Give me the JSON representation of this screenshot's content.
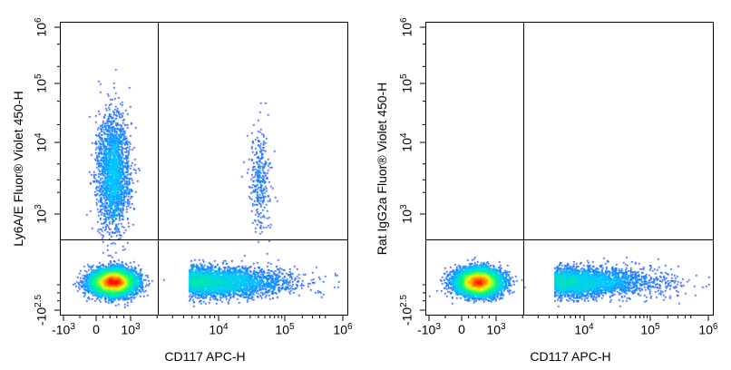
{
  "chart_data": [
    {
      "type": "scatter",
      "subtype": "flow-cytometry-density-dot-plot",
      "x_scale": "biexponential",
      "y_scale": "biexponential",
      "xlabel": "CD117 APC-H",
      "ylabel": "Ly6A/E  Fluor® Violet 450-H",
      "x_ticks": [
        {
          "label": "-10",
          "sup": "3",
          "value": -1000
        },
        {
          "label": "0",
          "sup": "",
          "value": 0
        },
        {
          "label": "10",
          "sup": "3",
          "value": 1000
        },
        {
          "label": "10",
          "sup": "4",
          "value": 10000
        },
        {
          "label": "10",
          "sup": "5",
          "value": 100000
        },
        {
          "label": "10",
          "sup": "6",
          "value": 1000000
        }
      ],
      "y_ticks": [
        {
          "label": "-10",
          "sup": "2.5",
          "value": -316
        },
        {
          "label": "10",
          "sup": "3",
          "value": 1000
        },
        {
          "label": "10",
          "sup": "4",
          "value": 10000
        },
        {
          "label": "10",
          "sup": "5",
          "value": 100000
        },
        {
          "label": "10",
          "sup": "6",
          "value": 1000000
        }
      ],
      "gates": {
        "x": 2000,
        "y": 650
      },
      "populations": [
        {
          "name": "main",
          "x_center": 450,
          "y_center": 60,
          "weight": 0.72
        },
        {
          "name": "ly6ae-positive",
          "x_center": 450,
          "y_center": 4000,
          "weight": 0.16
        },
        {
          "name": "cd117-spread",
          "x_center": 8000,
          "y_center": 60,
          "weight": 0.1
        },
        {
          "name": "double-positive",
          "x_center": 40000,
          "y_center": 3000,
          "weight": 0.02
        }
      ]
    },
    {
      "type": "scatter",
      "subtype": "flow-cytometry-density-dot-plot",
      "x_scale": "biexponential",
      "y_scale": "biexponential",
      "xlabel": "CD117 APC-H",
      "ylabel": "Rat IgG2a  Fluor® Violet 450-H",
      "x_ticks": [
        {
          "label": "-10",
          "sup": "3",
          "value": -1000
        },
        {
          "label": "0",
          "sup": "",
          "value": 0
        },
        {
          "label": "10",
          "sup": "3",
          "value": 1000
        },
        {
          "label": "10",
          "sup": "4",
          "value": 10000
        },
        {
          "label": "10",
          "sup": "5",
          "value": 100000
        },
        {
          "label": "10",
          "sup": "6",
          "value": 1000000
        }
      ],
      "y_ticks": [
        {
          "label": "-10",
          "sup": "2.5",
          "value": -316
        },
        {
          "label": "10",
          "sup": "3",
          "value": 1000
        },
        {
          "label": "10",
          "sup": "4",
          "value": 10000
        },
        {
          "label": "10",
          "sup": "5",
          "value": 100000
        },
        {
          "label": "10",
          "sup": "6",
          "value": 1000000
        }
      ],
      "gates": {
        "x": 2000,
        "y": 650
      },
      "populations": [
        {
          "name": "main",
          "x_center": 450,
          "y_center": 60,
          "weight": 0.88
        },
        {
          "name": "cd117-spread",
          "x_center": 8000,
          "y_center": 60,
          "weight": 0.12
        }
      ]
    }
  ],
  "colors": {
    "density_low": "#0000ff",
    "density_mid": "#00ffff",
    "density_high": "#ffff00",
    "density_peak": "#ff0000",
    "gate_line": "#000000"
  }
}
